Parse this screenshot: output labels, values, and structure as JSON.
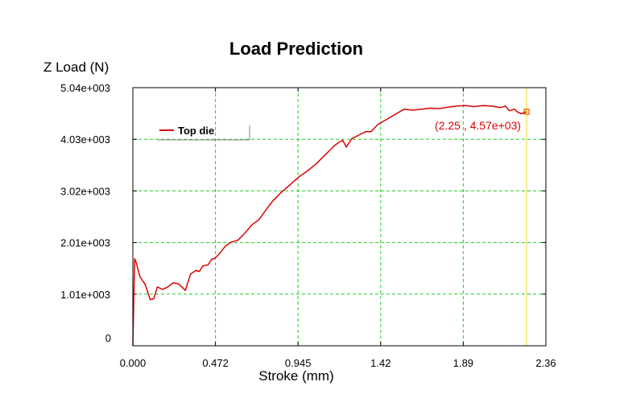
{
  "colors": {
    "series": "#dd0000",
    "grid": "#22cc22",
    "cursor": "#f5e36a",
    "cursor_marker": "#f07800",
    "frame": "#000000"
  },
  "chart_data": {
    "type": "line",
    "title": "Load Prediction",
    "xlabel": "Stroke (mm)",
    "ylabel": "Z Load (N)",
    "xlim": [
      0,
      2.36
    ],
    "ylim": [
      0,
      5040
    ],
    "x_ticks": [
      "0.000",
      "0.472",
      "0.945",
      "1.42",
      "1.89",
      "2.36"
    ],
    "y_ticks": [
      "0",
      "1.01e+003",
      "2.01e+003",
      "3.02e+003",
      "4.03e+003",
      "5.04e+003"
    ],
    "grid": true,
    "grid_style": "dashed",
    "legend_position": "top-left",
    "series": [
      {
        "name": "Top die",
        "x": [
          0,
          0.01,
          0.02,
          0.04,
          0.07,
          0.1,
          0.12,
          0.14,
          0.17,
          0.2,
          0.23,
          0.26,
          0.28,
          0.3,
          0.33,
          0.36,
          0.38,
          0.4,
          0.43,
          0.45,
          0.47,
          0.5,
          0.53,
          0.56,
          0.6,
          0.64,
          0.68,
          0.72,
          0.76,
          0.8,
          0.85,
          0.9,
          0.95,
          1.0,
          1.05,
          1.1,
          1.15,
          1.18,
          1.2,
          1.22,
          1.25,
          1.3,
          1.33,
          1.36,
          1.4,
          1.45,
          1.5,
          1.55,
          1.6,
          1.65,
          1.7,
          1.75,
          1.8,
          1.85,
          1.9,
          1.95,
          2.0,
          2.05,
          2.1,
          2.13,
          2.15,
          2.18,
          2.2,
          2.22,
          2.25
        ],
        "y": [
          0,
          1700,
          1620,
          1350,
          1200,
          900,
          920,
          1150,
          1100,
          1150,
          1230,
          1210,
          1150,
          1080,
          1400,
          1470,
          1450,
          1560,
          1580,
          1690,
          1710,
          1820,
          1950,
          2020,
          2060,
          2200,
          2360,
          2460,
          2650,
          2830,
          3000,
          3150,
          3300,
          3420,
          3560,
          3730,
          3900,
          3980,
          4010,
          3880,
          4040,
          4130,
          4180,
          4180,
          4320,
          4420,
          4520,
          4620,
          4600,
          4620,
          4640,
          4630,
          4660,
          4680,
          4690,
          4670,
          4690,
          4680,
          4650,
          4680,
          4590,
          4620,
          4560,
          4530,
          4570
        ]
      }
    ],
    "cursor": {
      "x": 2.25,
      "y": 4570,
      "label": "(2.25 , 4.57e+03)"
    }
  }
}
